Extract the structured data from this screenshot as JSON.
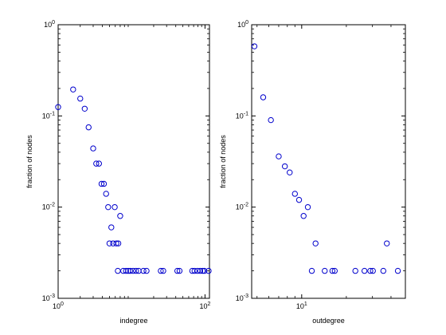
{
  "chart_data": [
    {
      "type": "scatter",
      "xscale": "log",
      "yscale": "log",
      "xlim": [
        1,
        115
      ],
      "ylim": [
        0.001,
        1
      ],
      "xlabel": "indegree",
      "ylabel": "fraction of nodes",
      "xticks": [
        1,
        100
      ],
      "xtick_labels": [
        "10^0",
        "10^2"
      ],
      "yticks": [
        0.001,
        0.01,
        0.1,
        1
      ],
      "ytick_labels": [
        "10^-3",
        "10^-2",
        "10^-1",
        "10^0"
      ],
      "marker": "open-circle",
      "color": "#0000cc",
      "points": [
        {
          "x": 1.0,
          "y": 0.125
        },
        {
          "x": 1.6,
          "y": 0.195
        },
        {
          "x": 2.0,
          "y": 0.155
        },
        {
          "x": 2.3,
          "y": 0.12
        },
        {
          "x": 2.6,
          "y": 0.075
        },
        {
          "x": 3.0,
          "y": 0.044
        },
        {
          "x": 3.3,
          "y": 0.03
        },
        {
          "x": 3.6,
          "y": 0.03
        },
        {
          "x": 3.9,
          "y": 0.018
        },
        {
          "x": 4.2,
          "y": 0.018
        },
        {
          "x": 4.5,
          "y": 0.014
        },
        {
          "x": 4.8,
          "y": 0.01
        },
        {
          "x": 5.0,
          "y": 0.004
        },
        {
          "x": 5.3,
          "y": 0.006
        },
        {
          "x": 5.6,
          "y": 0.004
        },
        {
          "x": 5.9,
          "y": 0.01
        },
        {
          "x": 6.2,
          "y": 0.004
        },
        {
          "x": 6.6,
          "y": 0.004
        },
        {
          "x": 6.5,
          "y": 0.002
        },
        {
          "x": 7.0,
          "y": 0.008
        },
        {
          "x": 7.7,
          "y": 0.002
        },
        {
          "x": 8.4,
          "y": 0.002
        },
        {
          "x": 9.0,
          "y": 0.002
        },
        {
          "x": 9.6,
          "y": 0.002
        },
        {
          "x": 10.5,
          "y": 0.002
        },
        {
          "x": 11.5,
          "y": 0.002
        },
        {
          "x": 12.5,
          "y": 0.002
        },
        {
          "x": 14.5,
          "y": 0.002
        },
        {
          "x": 16.0,
          "y": 0.002
        },
        {
          "x": 25.0,
          "y": 0.002
        },
        {
          "x": 27.0,
          "y": 0.002
        },
        {
          "x": 42.0,
          "y": 0.002
        },
        {
          "x": 45.0,
          "y": 0.002
        },
        {
          "x": 67.0,
          "y": 0.002
        },
        {
          "x": 72.0,
          "y": 0.002
        },
        {
          "x": 79.0,
          "y": 0.002
        },
        {
          "x": 86.0,
          "y": 0.002
        },
        {
          "x": 93.0,
          "y": 0.002
        },
        {
          "x": 98.0,
          "y": 0.002
        },
        {
          "x": 112.0,
          "y": 0.002
        }
      ]
    },
    {
      "type": "scatter",
      "xscale": "log",
      "yscale": "log",
      "xlim": [
        4.6,
        50
      ],
      "ylim": [
        0.001,
        1
      ],
      "xlabel": "outdegree",
      "ylabel": "fraction of nodes",
      "xticks": [
        10
      ],
      "xtick_labels": [
        "10^1"
      ],
      "yticks": [
        0.001,
        0.01,
        0.1,
        1
      ],
      "ytick_labels": [
        "10^-3",
        "10^-2",
        "10^-1",
        "10^0"
      ],
      "marker": "open-circle",
      "color": "#0000cc",
      "points": [
        {
          "x": 4.8,
          "y": 0.58
        },
        {
          "x": 5.5,
          "y": 0.16
        },
        {
          "x": 6.2,
          "y": 0.09
        },
        {
          "x": 7.0,
          "y": 0.036
        },
        {
          "x": 7.7,
          "y": 0.028
        },
        {
          "x": 8.3,
          "y": 0.024
        },
        {
          "x": 9.0,
          "y": 0.014
        },
        {
          "x": 9.6,
          "y": 0.012
        },
        {
          "x": 10.3,
          "y": 0.008
        },
        {
          "x": 11.0,
          "y": 0.01
        },
        {
          "x": 11.7,
          "y": 0.002
        },
        {
          "x": 12.4,
          "y": 0.004
        },
        {
          "x": 14.3,
          "y": 0.002
        },
        {
          "x": 16.1,
          "y": 0.002
        },
        {
          "x": 16.7,
          "y": 0.002
        },
        {
          "x": 23.0,
          "y": 0.002
        },
        {
          "x": 26.5,
          "y": 0.002
        },
        {
          "x": 29.0,
          "y": 0.002
        },
        {
          "x": 30.2,
          "y": 0.002
        },
        {
          "x": 35.5,
          "y": 0.002
        },
        {
          "x": 37.5,
          "y": 0.004
        },
        {
          "x": 44.5,
          "y": 0.002
        }
      ]
    }
  ]
}
